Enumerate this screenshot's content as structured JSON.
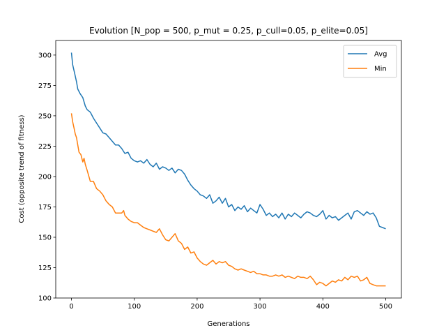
{
  "chart_data": {
    "type": "line",
    "title": "Evolution [N_pop = 500, p_mut = 0.25, p_cull=0.05, p_elite=0.05]",
    "xlabel": "Generations",
    "ylabel": "Cost (opposite trend of fitness)",
    "xlim": [
      -25,
      525
    ],
    "ylim": [
      100,
      312
    ],
    "x_ticks": [
      0,
      100,
      200,
      300,
      400,
      500
    ],
    "y_ticks": [
      100,
      125,
      150,
      175,
      200,
      225,
      250,
      275,
      300
    ],
    "grid": false,
    "legend": "top-right",
    "series": [
      {
        "name": "Avg",
        "color": "#1f77b4",
        "x": [
          0,
          2,
          5,
          8,
          10,
          14,
          18,
          22,
          25,
          30,
          35,
          40,
          45,
          50,
          55,
          60,
          65,
          70,
          75,
          80,
          85,
          90,
          95,
          100,
          105,
          110,
          115,
          120,
          125,
          130,
          135,
          140,
          145,
          150,
          155,
          160,
          165,
          170,
          175,
          180,
          185,
          190,
          195,
          200,
          205,
          210,
          215,
          220,
          225,
          230,
          235,
          240,
          245,
          250,
          255,
          260,
          265,
          270,
          275,
          280,
          285,
          290,
          295,
          300,
          305,
          310,
          315,
          320,
          325,
          330,
          335,
          340,
          345,
          350,
          355,
          360,
          365,
          370,
          375,
          380,
          385,
          390,
          395,
          400,
          405,
          410,
          415,
          420,
          425,
          430,
          435,
          440,
          445,
          450,
          455,
          460,
          465,
          470,
          475,
          480,
          485,
          490,
          495,
          500
        ],
        "values": [
          302,
          292,
          285,
          278,
          272,
          268,
          265,
          258,
          255,
          253,
          248,
          244,
          240,
          236,
          235,
          232,
          229,
          226,
          226,
          223,
          219,
          220,
          215,
          213,
          212,
          213,
          211,
          214,
          210,
          208,
          211,
          206,
          208,
          207,
          205,
          207,
          203,
          206,
          205,
          202,
          197,
          193,
          190,
          188,
          185,
          184,
          182,
          185,
          178,
          180,
          183,
          178,
          182,
          175,
          177,
          172,
          175,
          173,
          176,
          171,
          174,
          172,
          170,
          177,
          173,
          168,
          170,
          167,
          169,
          166,
          170,
          165,
          169,
          167,
          170,
          168,
          166,
          169,
          171,
          170,
          168,
          167,
          169,
          172,
          165,
          168,
          166,
          167,
          164,
          166,
          168,
          170,
          165,
          171,
          172,
          170,
          168,
          171,
          169,
          170,
          166,
          159,
          158,
          157
        ]
      },
      {
        "name": "Min",
        "color": "#ff7f0e",
        "x": [
          0,
          2,
          4,
          6,
          8,
          10,
          12,
          15,
          18,
          20,
          22,
          25,
          30,
          35,
          40,
          45,
          50,
          55,
          60,
          65,
          70,
          75,
          80,
          83,
          85,
          90,
          95,
          100,
          105,
          110,
          115,
          120,
          125,
          130,
          135,
          140,
          145,
          150,
          155,
          160,
          165,
          170,
          175,
          180,
          185,
          190,
          195,
          200,
          205,
          210,
          215,
          220,
          225,
          230,
          235,
          240,
          245,
          250,
          255,
          260,
          265,
          270,
          275,
          280,
          285,
          290,
          295,
          300,
          305,
          310,
          315,
          320,
          325,
          330,
          335,
          340,
          345,
          350,
          355,
          360,
          365,
          370,
          375,
          380,
          385,
          390,
          395,
          400,
          405,
          410,
          415,
          420,
          425,
          430,
          435,
          440,
          445,
          450,
          455,
          460,
          465,
          470,
          475,
          480,
          485,
          490,
          495,
          500
        ],
        "values": [
          252,
          245,
          240,
          235,
          232,
          226,
          220,
          218,
          212,
          215,
          210,
          205,
          196,
          196,
          190,
          188,
          185,
          180,
          177,
          175,
          170,
          170,
          170,
          172,
          168,
          165,
          163,
          162,
          162,
          160,
          158,
          157,
          156,
          155,
          154,
          157,
          152,
          148,
          147,
          150,
          153,
          147,
          145,
          140,
          142,
          137,
          138,
          133,
          130,
          128,
          127,
          129,
          131,
          128,
          130,
          129,
          130,
          127,
          126,
          124,
          123,
          124,
          123,
          122,
          121,
          122,
          120,
          120,
          119,
          119,
          118,
          118,
          119,
          118,
          119,
          117,
          118,
          117,
          116,
          118,
          117,
          117,
          116,
          118,
          115,
          111,
          113,
          112,
          110,
          112,
          114,
          113,
          115,
          114,
          117,
          115,
          118,
          117,
          118,
          114,
          115,
          117,
          112,
          111,
          110,
          110,
          110,
          110
        ]
      }
    ]
  }
}
